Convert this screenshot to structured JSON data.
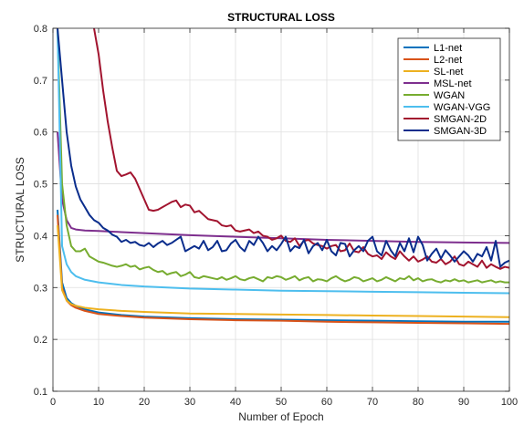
{
  "chart_data": {
    "type": "line",
    "title": "STRUCTURAL LOSS",
    "xlabel": "Number of Epoch",
    "ylabel": "STRUCTURAL LOSS",
    "xlim": [
      0,
      100
    ],
    "ylim": [
      0.1,
      0.8
    ],
    "xticks": [
      0,
      10,
      20,
      30,
      40,
      50,
      60,
      70,
      80,
      90,
      100
    ],
    "yticks": [
      0.1,
      0.2,
      0.3,
      0.4,
      0.5,
      0.6,
      0.7,
      0.8
    ],
    "grid": true,
    "legend_position": "top-right",
    "series": [
      {
        "name": "L1-net",
        "color": "#0072BD",
        "x": [
          1,
          2,
          3,
          4,
          5,
          7,
          10,
          15,
          20,
          30,
          40,
          50,
          60,
          70,
          80,
          90,
          100
        ],
        "y": [
          0.45,
          0.31,
          0.28,
          0.27,
          0.265,
          0.258,
          0.252,
          0.247,
          0.244,
          0.241,
          0.239,
          0.238,
          0.237,
          0.236,
          0.235,
          0.234,
          0.234
        ]
      },
      {
        "name": "L2-net",
        "color": "#D95319",
        "x": [
          1,
          2,
          3,
          4,
          5,
          7,
          10,
          15,
          20,
          30,
          40,
          50,
          60,
          70,
          80,
          90,
          100
        ],
        "y": [
          0.44,
          0.3,
          0.275,
          0.266,
          0.261,
          0.255,
          0.249,
          0.245,
          0.242,
          0.239,
          0.237,
          0.236,
          0.234,
          0.233,
          0.232,
          0.231,
          0.23
        ]
      },
      {
        "name": "SL-net",
        "color": "#EDB120",
        "x": [
          1,
          2,
          3,
          4,
          5,
          7,
          10,
          15,
          20,
          30,
          40,
          50,
          60,
          70,
          80,
          90,
          100
        ],
        "y": [
          0.42,
          0.295,
          0.275,
          0.268,
          0.265,
          0.261,
          0.258,
          0.255,
          0.253,
          0.25,
          0.249,
          0.248,
          0.247,
          0.246,
          0.245,
          0.244,
          0.243
        ]
      },
      {
        "name": "MSL-net",
        "color": "#7E2F8E",
        "x": [
          1,
          2,
          3,
          4,
          5,
          7,
          10,
          15,
          20,
          30,
          40,
          50,
          60,
          70,
          80,
          90,
          100
        ],
        "y": [
          0.6,
          0.47,
          0.43,
          0.415,
          0.412,
          0.41,
          0.409,
          0.407,
          0.405,
          0.401,
          0.398,
          0.395,
          0.392,
          0.39,
          0.388,
          0.387,
          0.386
        ]
      },
      {
        "name": "WGAN",
        "color": "#77AC30",
        "x": [
          1,
          2,
          3,
          4,
          5,
          6,
          7,
          8,
          9,
          10,
          11,
          12,
          13,
          14,
          15,
          16,
          17,
          18,
          19,
          20,
          21,
          22,
          23,
          24,
          25,
          26,
          27,
          28,
          29,
          30,
          31,
          32,
          33,
          34,
          35,
          36,
          37,
          38,
          39,
          40,
          41,
          42,
          43,
          44,
          45,
          46,
          47,
          48,
          49,
          50,
          51,
          52,
          53,
          54,
          55,
          56,
          57,
          58,
          59,
          60,
          61,
          62,
          63,
          64,
          65,
          66,
          67,
          68,
          69,
          70,
          71,
          72,
          73,
          74,
          75,
          76,
          77,
          78,
          79,
          80,
          81,
          82,
          83,
          84,
          85,
          86,
          87,
          88,
          89,
          90,
          91,
          92,
          93,
          94,
          95,
          96,
          97,
          98,
          99,
          100
        ],
        "y": [
          0.8,
          0.5,
          0.42,
          0.38,
          0.37,
          0.37,
          0.375,
          0.36,
          0.355,
          0.35,
          0.348,
          0.345,
          0.342,
          0.34,
          0.342,
          0.345,
          0.34,
          0.342,
          0.335,
          0.338,
          0.34,
          0.334,
          0.33,
          0.332,
          0.325,
          0.328,
          0.33,
          0.322,
          0.325,
          0.33,
          0.32,
          0.318,
          0.322,
          0.32,
          0.318,
          0.316,
          0.32,
          0.315,
          0.318,
          0.322,
          0.316,
          0.314,
          0.318,
          0.32,
          0.316,
          0.312,
          0.32,
          0.318,
          0.322,
          0.32,
          0.315,
          0.318,
          0.322,
          0.314,
          0.318,
          0.32,
          0.312,
          0.316,
          0.315,
          0.312,
          0.318,
          0.322,
          0.316,
          0.312,
          0.315,
          0.32,
          0.318,
          0.312,
          0.315,
          0.318,
          0.312,
          0.315,
          0.32,
          0.316,
          0.312,
          0.318,
          0.316,
          0.322,
          0.314,
          0.318,
          0.312,
          0.315,
          0.316,
          0.312,
          0.31,
          0.314,
          0.312,
          0.316,
          0.312,
          0.314,
          0.31,
          0.312,
          0.314,
          0.31,
          0.312,
          0.314,
          0.31,
          0.312,
          0.31,
          0.31
        ]
      },
      {
        "name": "WGAN-VGG",
        "color": "#4DBEEE",
        "x": [
          1,
          2,
          3,
          4,
          5,
          7,
          10,
          15,
          20,
          30,
          40,
          50,
          60,
          70,
          80,
          90,
          100
        ],
        "y": [
          0.8,
          0.38,
          0.345,
          0.33,
          0.322,
          0.315,
          0.31,
          0.305,
          0.302,
          0.298,
          0.296,
          0.294,
          0.293,
          0.292,
          0.291,
          0.29,
          0.289
        ]
      },
      {
        "name": "SMGAN-2D",
        "color": "#A2142F",
        "x": [
          9,
          10,
          11,
          12,
          13,
          14,
          15,
          16,
          17,
          18,
          19,
          20,
          21,
          22,
          23,
          24,
          25,
          26,
          27,
          28,
          29,
          30,
          31,
          32,
          33,
          34,
          35,
          36,
          37,
          38,
          39,
          40,
          41,
          42,
          43,
          44,
          45,
          46,
          47,
          48,
          49,
          50,
          51,
          52,
          53,
          54,
          55,
          56,
          57,
          58,
          59,
          60,
          61,
          62,
          63,
          64,
          65,
          66,
          67,
          68,
          69,
          70,
          71,
          72,
          73,
          74,
          75,
          76,
          77,
          78,
          79,
          80,
          81,
          82,
          83,
          84,
          85,
          86,
          87,
          88,
          89,
          90,
          91,
          92,
          93,
          94,
          95,
          96,
          97,
          98,
          99,
          100
        ],
        "y": [
          0.8,
          0.75,
          0.68,
          0.62,
          0.57,
          0.525,
          0.515,
          0.518,
          0.522,
          0.51,
          0.49,
          0.47,
          0.45,
          0.448,
          0.45,
          0.455,
          0.46,
          0.465,
          0.468,
          0.455,
          0.46,
          0.458,
          0.445,
          0.448,
          0.44,
          0.432,
          0.43,
          0.428,
          0.42,
          0.418,
          0.42,
          0.41,
          0.408,
          0.41,
          0.412,
          0.405,
          0.408,
          0.4,
          0.398,
          0.392,
          0.395,
          0.4,
          0.39,
          0.388,
          0.395,
          0.38,
          0.39,
          0.392,
          0.385,
          0.382,
          0.38,
          0.375,
          0.38,
          0.382,
          0.37,
          0.372,
          0.385,
          0.37,
          0.368,
          0.378,
          0.365,
          0.36,
          0.362,
          0.355,
          0.368,
          0.36,
          0.355,
          0.37,
          0.36,
          0.352,
          0.36,
          0.35,
          0.354,
          0.36,
          0.35,
          0.348,
          0.355,
          0.345,
          0.35,
          0.36,
          0.345,
          0.342,
          0.35,
          0.345,
          0.34,
          0.352,
          0.338,
          0.345,
          0.34,
          0.336,
          0.34,
          0.338
        ]
      },
      {
        "name": "SMGAN-3D",
        "color": "#0A2D8C",
        "x": [
          1,
          2,
          3,
          4,
          5,
          6,
          7,
          8,
          9,
          10,
          11,
          12,
          13,
          14,
          15,
          16,
          17,
          18,
          19,
          20,
          21,
          22,
          23,
          24,
          25,
          26,
          27,
          28,
          29,
          30,
          31,
          32,
          33,
          34,
          35,
          36,
          37,
          38,
          39,
          40,
          41,
          42,
          43,
          44,
          45,
          46,
          47,
          48,
          49,
          50,
          51,
          52,
          53,
          54,
          55,
          56,
          57,
          58,
          59,
          60,
          61,
          62,
          63,
          64,
          65,
          66,
          67,
          68,
          69,
          70,
          71,
          72,
          73,
          74,
          75,
          76,
          77,
          78,
          79,
          80,
          81,
          82,
          83,
          84,
          85,
          86,
          87,
          88,
          89,
          90,
          91,
          92,
          93,
          94,
          95,
          96,
          97,
          98,
          99,
          100
        ],
        "y": [
          0.8,
          0.7,
          0.6,
          0.535,
          0.495,
          0.47,
          0.455,
          0.44,
          0.43,
          0.425,
          0.415,
          0.41,
          0.402,
          0.398,
          0.388,
          0.392,
          0.386,
          0.388,
          0.382,
          0.38,
          0.386,
          0.378,
          0.385,
          0.39,
          0.382,
          0.386,
          0.392,
          0.398,
          0.37,
          0.375,
          0.38,
          0.375,
          0.39,
          0.372,
          0.378,
          0.39,
          0.37,
          0.372,
          0.385,
          0.392,
          0.378,
          0.37,
          0.39,
          0.382,
          0.398,
          0.386,
          0.37,
          0.38,
          0.372,
          0.384,
          0.398,
          0.37,
          0.38,
          0.376,
          0.392,
          0.366,
          0.38,
          0.386,
          0.372,
          0.392,
          0.37,
          0.362,
          0.386,
          0.384,
          0.36,
          0.372,
          0.38,
          0.37,
          0.39,
          0.398,
          0.37,
          0.362,
          0.39,
          0.372,
          0.36,
          0.386,
          0.37,
          0.395,
          0.368,
          0.398,
          0.382,
          0.352,
          0.365,
          0.375,
          0.356,
          0.372,
          0.362,
          0.35,
          0.36,
          0.37,
          0.362,
          0.35,
          0.365,
          0.36,
          0.378,
          0.352,
          0.39,
          0.34,
          0.348,
          0.352
        ]
      }
    ]
  }
}
